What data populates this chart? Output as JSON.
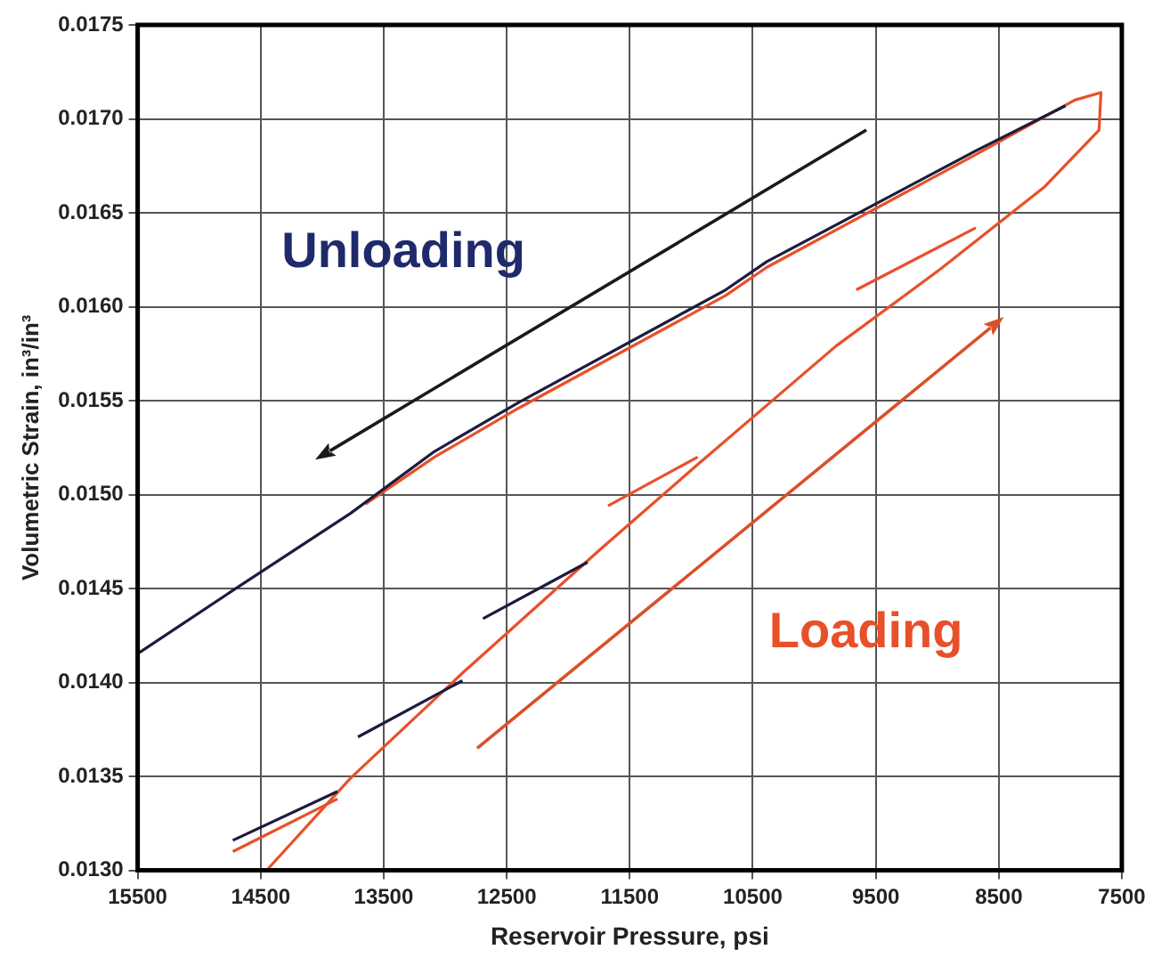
{
  "chart_data": {
    "type": "line",
    "xlabel": "Reservoir Pressure, psi",
    "ylabel": "Volumetric Strain, in³/in³",
    "xlim": [
      15500,
      7500
    ],
    "xticks": [
      15500,
      14500,
      13500,
      12500,
      11500,
      10500,
      9500,
      8500,
      7500
    ],
    "ylim": [
      0.013,
      0.0175
    ],
    "yticks": [
      {
        "value": 0.013,
        "label": "0.0130"
      },
      {
        "value": 0.0135,
        "label": "0.0135"
      },
      {
        "value": 0.014,
        "label": "0.0140"
      },
      {
        "value": 0.0145,
        "label": "0.0145"
      },
      {
        "value": 0.015,
        "label": "0.0150"
      },
      {
        "value": 0.0155,
        "label": "0.0155"
      },
      {
        "value": 0.016,
        "label": "0.0160"
      },
      {
        "value": 0.0165,
        "label": "0.0165"
      },
      {
        "value": 0.017,
        "label": "0.0170"
      },
      {
        "value": 0.0175,
        "label": "0.0175"
      }
    ],
    "grid": true,
    "legend": false,
    "marker": "none",
    "line_style": "solid",
    "annotations": [
      "Unloading",
      "Loading"
    ],
    "series": [
      {
        "color": "#1c1c3c",
        "x": [
          15485,
          14726,
          13770,
          13087,
          12404,
          10720,
          10386,
          8687,
          7958
        ],
        "values": [
          0.01416,
          0.01449,
          0.0149,
          0.01523,
          0.01549,
          0.01609,
          0.01624,
          0.01683,
          0.01707
        ]
      },
      {
        "color": "#1c1c3c",
        "x": [
          14726,
          13876,
          13800,
          13709,
          12860,
          12780,
          12693,
          11843
        ],
        "values": [
          0.01316,
          0.01342,
          null,
          0.01371,
          0.01401,
          null,
          0.01434,
          0.01464
        ]
      },
      {
        "color": "#e8502a",
        "x": [
          14438,
          13770,
          12860,
          11737,
          10948,
          9825,
          8975,
          8125,
          7685,
          7670,
          7882,
          8687,
          10386,
          10720,
          12404,
          13087,
          13649
        ],
        "values": [
          0.01301,
          0.01349,
          0.01405,
          0.01471,
          0.01516,
          0.01579,
          0.0162,
          0.01664,
          0.01694,
          0.01714,
          0.0171,
          0.01681,
          0.01621,
          0.01606,
          0.01546,
          0.0152,
          0.01495
        ]
      },
      {
        "color": "#e8502a",
        "x": [
          14726,
          13876,
          12500,
          11676,
          10948,
          10300,
          9658,
          8687
        ],
        "values": [
          0.0131,
          0.01338,
          null,
          0.01494,
          0.0152,
          null,
          0.01609,
          0.01642
        ]
      }
    ]
  }
}
